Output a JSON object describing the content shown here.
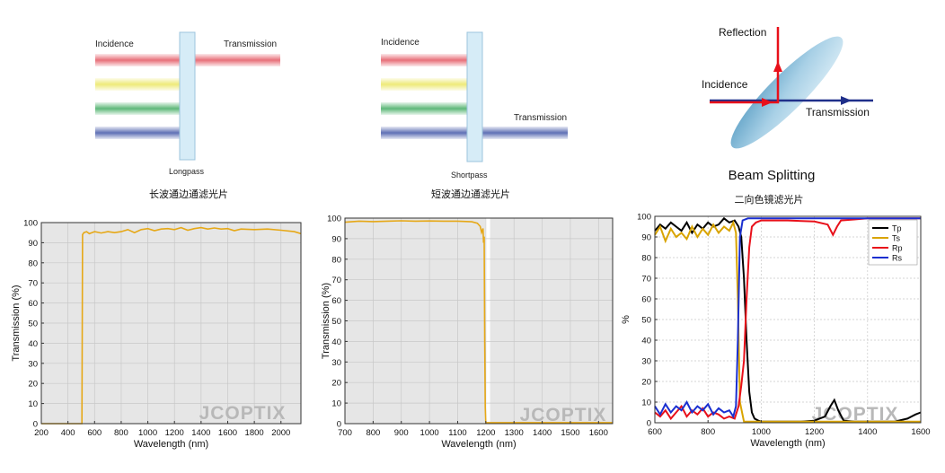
{
  "diagrams": {
    "longpass": {
      "incidence": "Incidence",
      "transmission": "Transmission",
      "name": "Longpass",
      "title_cn": "长波通边通滤光片"
    },
    "shortpass": {
      "incidence": "Incidence",
      "transmission": "Transmission",
      "name": "Shortpass",
      "title_cn": "短波通边通滤光片"
    },
    "beamsplit": {
      "reflection": "Reflection",
      "incidence": "Incidence",
      "transmission": "Transmission",
      "name": "Beam Splitting",
      "title_cn": "二向色镜滤光片"
    }
  },
  "watermark": "JCOPTIX",
  "colors": {
    "red_beam": "#e8707a",
    "yellow_beam": "#eeea7a",
    "green_beam": "#5fb87a",
    "blue_beam": "#5f70b5",
    "filter_glass": "#d6ecf7",
    "curve_orange": "#e6a817",
    "plot_bg": "#e6e6e6",
    "series_tp": "#000000",
    "series_ts": "#d9a400",
    "series_rp": "#e8101a",
    "series_rs": "#1a2fd0"
  },
  "chart_data": [
    {
      "type": "line",
      "xlabel": "Wavelength (nm)",
      "ylabel": "Transmission (%)",
      "xlim": [
        200,
        2150
      ],
      "ylim": [
        0,
        100
      ],
      "xticks": [
        200,
        400,
        600,
        800,
        1000,
        1200,
        1400,
        1600,
        1800,
        2000
      ],
      "yticks": [
        0,
        10,
        20,
        30,
        40,
        50,
        60,
        70,
        80,
        90,
        100
      ],
      "grid": true,
      "series": [
        {
          "x": [
            200,
            480,
            505,
            510,
            520,
            540,
            560,
            580,
            600,
            650,
            700,
            750,
            800,
            850,
            900,
            950,
            1000,
            1050,
            1100,
            1150,
            1200,
            1250,
            1300,
            1350,
            1400,
            1450,
            1500,
            1550,
            1600,
            1650,
            1700,
            1800,
            1900,
            2000,
            2100,
            2150
          ],
          "y": [
            0,
            0,
            0,
            94,
            95,
            95.5,
            94.5,
            95,
            95.5,
            94.8,
            95.5,
            95,
            95.5,
            96.5,
            95,
            96.5,
            97,
            96,
            96.8,
            97,
            96.5,
            97.5,
            96.2,
            97,
            97.5,
            96.8,
            97.3,
            96.8,
            97,
            96,
            96.8,
            96.5,
            96.8,
            96.2,
            95.5,
            94.5
          ]
        }
      ]
    },
    {
      "type": "line",
      "xlabel": "Wavelength (nm)",
      "ylabel": "Transmission (%)",
      "xlim": [
        700,
        1650
      ],
      "ylim": [
        0,
        100
      ],
      "xticks": [
        700,
        800,
        900,
        1000,
        1100,
        1200,
        1300,
        1400,
        1500,
        1600
      ],
      "yticks": [
        0,
        10,
        20,
        30,
        40,
        50,
        60,
        70,
        80,
        90,
        100
      ],
      "grid": true,
      "series": [
        {
          "x": [
            700,
            750,
            800,
            850,
            900,
            950,
            1000,
            1050,
            1100,
            1150,
            1170,
            1180,
            1185,
            1190,
            1192,
            1194,
            1196,
            1198,
            1200,
            1250,
            1300,
            1400,
            1500,
            1600,
            1650
          ],
          "y": [
            98,
            98.5,
            98.3,
            98.5,
            98.7,
            98.5,
            98.6,
            98.5,
            98.5,
            98.2,
            97.5,
            96,
            93,
            95,
            88,
            91,
            40,
            8,
            0.5,
            0.5,
            0.5,
            0.5,
            0.5,
            0.5,
            0.5
          ]
        }
      ]
    },
    {
      "type": "line",
      "xlabel": "Wavelength (nm)",
      "ylabel": "%",
      "xlim": [
        600,
        1600
      ],
      "ylim": [
        0,
        100
      ],
      "xticks": [
        600,
        800,
        1000,
        1200,
        1400,
        1600
      ],
      "yticks": [
        0,
        10,
        20,
        30,
        40,
        50,
        60,
        70,
        80,
        90,
        100
      ],
      "grid": true,
      "legend": "top-right",
      "series": [
        {
          "name": "Tp",
          "x": [
            600,
            620,
            640,
            660,
            680,
            700,
            720,
            740,
            760,
            780,
            800,
            820,
            840,
            860,
            880,
            900,
            915,
            925,
            935,
            945,
            955,
            965,
            975,
            990,
            1000,
            1050,
            1100,
            1150,
            1200,
            1240,
            1260,
            1275,
            1290,
            1310,
            1350,
            1400,
            1500,
            1550,
            1580,
            1600
          ],
          "y": [
            93,
            96,
            94,
            97,
            95,
            93,
            97,
            92,
            96,
            94,
            97,
            95,
            96,
            99,
            97,
            98,
            95,
            90,
            70,
            40,
            15,
            5,
            2,
            1,
            0.5,
            0.5,
            0.5,
            0.5,
            1,
            3,
            8,
            11,
            6,
            1,
            0.5,
            0.5,
            0.5,
            2,
            4,
            5
          ]
        },
        {
          "name": "Ts",
          "x": [
            600,
            620,
            640,
            660,
            680,
            700,
            720,
            740,
            760,
            780,
            800,
            820,
            840,
            860,
            880,
            895,
            905,
            912,
            920,
            935,
            1000,
            1200,
            1400,
            1600
          ],
          "y": [
            91,
            95,
            88,
            94,
            90,
            92,
            89,
            95,
            90,
            94,
            91,
            96,
            92,
            95,
            93,
            97,
            92,
            60,
            10,
            0.5,
            0.5,
            0.5,
            0.5,
            0.5
          ]
        },
        {
          "name": "Rp",
          "x": [
            600,
            620,
            640,
            660,
            680,
            700,
            720,
            740,
            760,
            780,
            800,
            820,
            840,
            860,
            880,
            900,
            915,
            925,
            935,
            945,
            955,
            965,
            980,
            1000,
            1100,
            1200,
            1250,
            1270,
            1285,
            1300,
            1350,
            1400,
            1600
          ],
          "y": [
            5,
            3,
            6,
            2,
            5,
            8,
            3,
            6,
            4,
            7,
            3,
            5,
            4,
            2,
            3,
            2,
            8,
            18,
            30,
            60,
            85,
            95,
            97,
            98,
            98,
            97.5,
            96,
            91,
            95,
            98,
            98.5,
            99,
            99
          ]
        },
        {
          "name": "Rs",
          "x": [
            600,
            620,
            640,
            660,
            680,
            700,
            720,
            740,
            760,
            780,
            800,
            820,
            840,
            860,
            880,
            895,
            905,
            912,
            920,
            930,
            950,
            1000,
            1200,
            1400,
            1600
          ],
          "y": [
            8,
            4,
            9,
            5,
            8,
            6,
            10,
            5,
            8,
            6,
            9,
            4,
            7,
            5,
            6,
            3,
            8,
            40,
            90,
            98,
            99,
            99,
            99,
            99,
            99
          ]
        }
      ]
    }
  ]
}
